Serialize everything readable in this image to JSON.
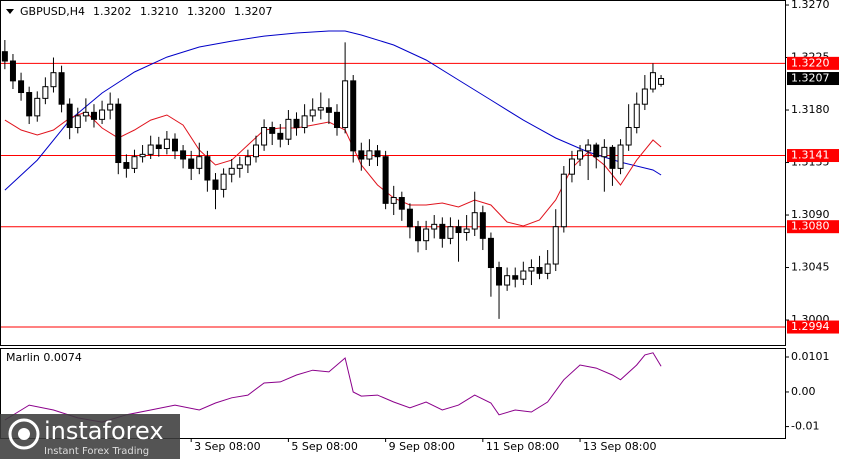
{
  "chart_data": [
    {
      "type": "candlestick",
      "title": "GBPUSD,H4",
      "ohlc_label": [
        "1.3202",
        "1.3210",
        "1.3200",
        "1.3207"
      ],
      "open": [
        1.323,
        1.3222,
        1.3205,
        1.3195,
        1.3175,
        1.319,
        1.32,
        1.3212,
        1.3185,
        1.3165,
        1.3175,
        1.3178,
        1.3172,
        1.318,
        1.3185,
        1.3135,
        1.313,
        1.314,
        1.3142,
        1.315,
        1.3147,
        1.3155,
        1.3145,
        1.3138,
        1.313,
        1.314,
        1.312,
        1.3112,
        1.3125,
        1.313,
        1.3133,
        1.314,
        1.315,
        1.3165,
        1.316,
        1.3155,
        1.3172,
        1.3165,
        1.3175,
        1.318,
        1.3182,
        1.3178,
        1.3165,
        1.3205,
        1.3145,
        1.3138,
        1.3145,
        1.314,
        1.31,
        1.3105,
        1.3095,
        1.308,
        1.3068,
        1.3078,
        1.3082,
        1.307,
        1.308,
        1.3075,
        1.3078,
        1.3092,
        1.307,
        1.3045,
        1.303,
        1.3038,
        1.3035,
        1.3042,
        1.3045,
        1.304,
        1.3048,
        1.308,
        1.3125,
        1.3138,
        1.3145,
        1.315,
        1.314,
        1.3148,
        1.313,
        1.315,
        1.3165,
        1.3185,
        1.3198,
        1.3202
      ],
      "high": [
        1.324,
        1.3228,
        1.3212,
        1.32,
        1.3196,
        1.3208,
        1.3225,
        1.3218,
        1.319,
        1.3182,
        1.319,
        1.3185,
        1.3188,
        1.3195,
        1.319,
        1.3142,
        1.3146,
        1.315,
        1.3158,
        1.3157,
        1.3162,
        1.316,
        1.315,
        1.3145,
        1.3152,
        1.3145,
        1.3126,
        1.313,
        1.3138,
        1.314,
        1.3146,
        1.3158,
        1.3172,
        1.317,
        1.3168,
        1.318,
        1.3178,
        1.3185,
        1.319,
        1.3195,
        1.319,
        1.3185,
        1.3238,
        1.321,
        1.3152,
        1.3155,
        1.315,
        1.3145,
        1.3115,
        1.311,
        1.31,
        1.3085,
        1.3085,
        1.309,
        1.3088,
        1.3088,
        1.3086,
        1.309,
        1.311,
        1.3098,
        1.3075,
        1.305,
        1.3045,
        1.3045,
        1.305,
        1.3052,
        1.3055,
        1.306,
        1.3095,
        1.3132,
        1.3145,
        1.315,
        1.3155,
        1.3152,
        1.3155,
        1.315,
        1.3155,
        1.3185,
        1.3195,
        1.321,
        1.322,
        1.321
      ],
      "low": [
        1.3215,
        1.3198,
        1.3188,
        1.3168,
        1.317,
        1.3185,
        1.3195,
        1.3178,
        1.3155,
        1.316,
        1.317,
        1.3165,
        1.3168,
        1.3172,
        1.3125,
        1.3122,
        1.3126,
        1.3135,
        1.3138,
        1.314,
        1.3142,
        1.3138,
        1.313,
        1.312,
        1.3125,
        1.311,
        1.3095,
        1.3105,
        1.3118,
        1.3122,
        1.3126,
        1.3135,
        1.3145,
        1.315,
        1.3148,
        1.315,
        1.3158,
        1.316,
        1.317,
        1.3172,
        1.3168,
        1.3158,
        1.316,
        1.3135,
        1.3128,
        1.3132,
        1.3132,
        1.3095,
        1.309,
        1.3085,
        1.307,
        1.3058,
        1.306,
        1.307,
        1.3062,
        1.3065,
        1.305,
        1.3068,
        1.3072,
        1.306,
        1.302,
        1.3001,
        1.3025,
        1.3028,
        1.303,
        1.303,
        1.3035,
        1.3035,
        1.3042,
        1.3075,
        1.3118,
        1.3132,
        1.312,
        1.313,
        1.311,
        1.3115,
        1.3125,
        1.3145,
        1.316,
        1.318,
        1.3195,
        1.32
      ],
      "close": [
        1.3222,
        1.3205,
        1.3195,
        1.3175,
        1.319,
        1.32,
        1.3212,
        1.3185,
        1.3165,
        1.3175,
        1.3178,
        1.3172,
        1.318,
        1.3185,
        1.3135,
        1.313,
        1.314,
        1.3142,
        1.315,
        1.3147,
        1.3155,
        1.3145,
        1.3138,
        1.313,
        1.314,
        1.312,
        1.3112,
        1.3125,
        1.313,
        1.3133,
        1.314,
        1.315,
        1.3165,
        1.316,
        1.3155,
        1.3172,
        1.3165,
        1.3175,
        1.318,
        1.3182,
        1.3178,
        1.3165,
        1.3205,
        1.3145,
        1.3138,
        1.3145,
        1.314,
        1.31,
        1.3105,
        1.3095,
        1.308,
        1.3068,
        1.3078,
        1.3082,
        1.307,
        1.308,
        1.3075,
        1.3078,
        1.3092,
        1.307,
        1.3045,
        1.303,
        1.3038,
        1.3035,
        1.3042,
        1.3045,
        1.304,
        1.3048,
        1.308,
        1.3125,
        1.3138,
        1.3145,
        1.315,
        1.314,
        1.3148,
        1.313,
        1.315,
        1.3165,
        1.3185,
        1.3198,
        1.3212,
        1.3207
      ],
      "up_color": "#ffffff",
      "down_color": "#000000",
      "lines": [
        {
          "color": "#0000c8",
          "x": [
            0,
            4,
            8,
            12,
            16,
            20,
            24,
            28,
            32,
            36,
            40,
            42,
            44,
            48,
            52,
            56,
            60,
            64,
            68,
            72,
            76,
            80,
            81
          ],
          "values": [
            1.31114,
            1.31371,
            1.31714,
            1.31946,
            1.32126,
            1.32254,
            1.3234,
            1.32391,
            1.32434,
            1.3246,
            1.32477,
            1.32477,
            1.32443,
            1.32357,
            1.32229,
            1.32057,
            1.31886,
            1.31714,
            1.3156,
            1.3144,
            1.31354,
            1.31286,
            1.31243
          ]
        },
        {
          "color": "#e0141e",
          "x": [
            0,
            2,
            4,
            6,
            8,
            10,
            12,
            14,
            16,
            18,
            20,
            22,
            24,
            26,
            28,
            30,
            32,
            34,
            36,
            38,
            40,
            42,
            44,
            46,
            48,
            50,
            52,
            54,
            56,
            58,
            60,
            62,
            64,
            66,
            68,
            70,
            72,
            74,
            76,
            78,
            80,
            81
          ],
          "values": [
            1.31714,
            1.31629,
            1.31586,
            1.31629,
            1.31731,
            1.31783,
            1.31646,
            1.3156,
            1.31629,
            1.31714,
            1.31757,
            1.31671,
            1.31457,
            1.31329,
            1.31371,
            1.315,
            1.31629,
            1.31646,
            1.31646,
            1.31671,
            1.31697,
            1.31629,
            1.31329,
            1.31157,
            1.31046,
            1.30986,
            1.30986,
            1.31003,
            1.30969,
            1.31029,
            1.30986,
            1.3084,
            1.30806,
            1.30857,
            1.31029,
            1.31303,
            1.3144,
            1.31329,
            1.31157,
            1.31371,
            1.31543,
            1.31483
          ]
        }
      ],
      "levels": [
        {
          "value": 1.322,
          "label": "1.3220"
        },
        {
          "value": 1.3141,
          "label": "1.3141"
        },
        {
          "value": 1.308,
          "label": "1.3080"
        },
        {
          "value": 1.2994,
          "label": "1.2994"
        }
      ],
      "level_color": "#ff0000",
      "last_price": {
        "value": 1.3207,
        "label": "1.3207"
      },
      "xlim": [
        -0.6,
        96.3
      ],
      "ylim": [
        1.29786,
        1.32743
      ],
      "yticks": [
        {
          "value": 1.327,
          "label": "1.3270"
        },
        {
          "value": 1.3225,
          "label": "1.3225"
        },
        {
          "value": 1.318,
          "label": "1.3180"
        },
        {
          "value": 1.3135,
          "label": "1.3135"
        },
        {
          "value": 1.309,
          "label": "1.3090"
        },
        {
          "value": 1.3045,
          "label": "1.3045"
        },
        {
          "value": 1.3,
          "label": "1.3000"
        }
      ]
    },
    {
      "type": "line",
      "title": "Marlin 0.0074",
      "color": "#8b008b",
      "x": [
        0,
        3,
        6,
        9,
        12,
        15,
        18,
        21,
        24,
        26,
        28,
        30,
        32,
        34,
        36,
        38,
        40,
        42,
        43,
        44,
        46,
        48,
        50,
        52,
        54,
        56,
        58,
        60,
        61,
        63,
        65,
        67,
        69,
        71,
        73,
        75,
        76,
        78,
        79,
        80,
        81
      ],
      "values": [
        -0.0081,
        -0.0038,
        -0.0052,
        -0.0075,
        -0.0087,
        -0.0066,
        -0.0052,
        -0.0038,
        -0.0052,
        -0.0032,
        -0.0017,
        -0.0009,
        0.0026,
        0.0029,
        0.0049,
        0.0063,
        0.0058,
        0.0098,
        0,
        -0.0012,
        -0.0009,
        -0.0029,
        -0.0046,
        -0.0029,
        -0.0052,
        -0.0038,
        -0.0009,
        -0.0032,
        -0.0066,
        -0.0052,
        -0.0058,
        -0.0029,
        0.0035,
        0.0078,
        0.0069,
        0.0049,
        0.0035,
        0.0078,
        0.0107,
        0.0113,
        0.0074
      ],
      "xlim": [
        -0.6,
        96.3
      ],
      "ylim": [
        -0.0133,
        0.0127
      ],
      "yticks": [
        {
          "value": 0.0101,
          "label": "0.0101"
        },
        {
          "value": 0,
          "label": "0.00"
        },
        {
          "value": -0.01,
          "label": "-0.01"
        }
      ],
      "xticks": [
        {
          "value": 23,
          "label": "3 Sep 08:00"
        },
        {
          "value": 35,
          "label": "5 Sep 08:00"
        },
        {
          "value": 47,
          "label": "9 Sep 08:00"
        },
        {
          "value": 59,
          "label": "11 Sep 08:00"
        },
        {
          "value": 71,
          "label": "13 Sep 08:00"
        }
      ]
    }
  ],
  "watermark": {
    "brand": "instaforex",
    "tagline": "Instant Forex Trading"
  }
}
